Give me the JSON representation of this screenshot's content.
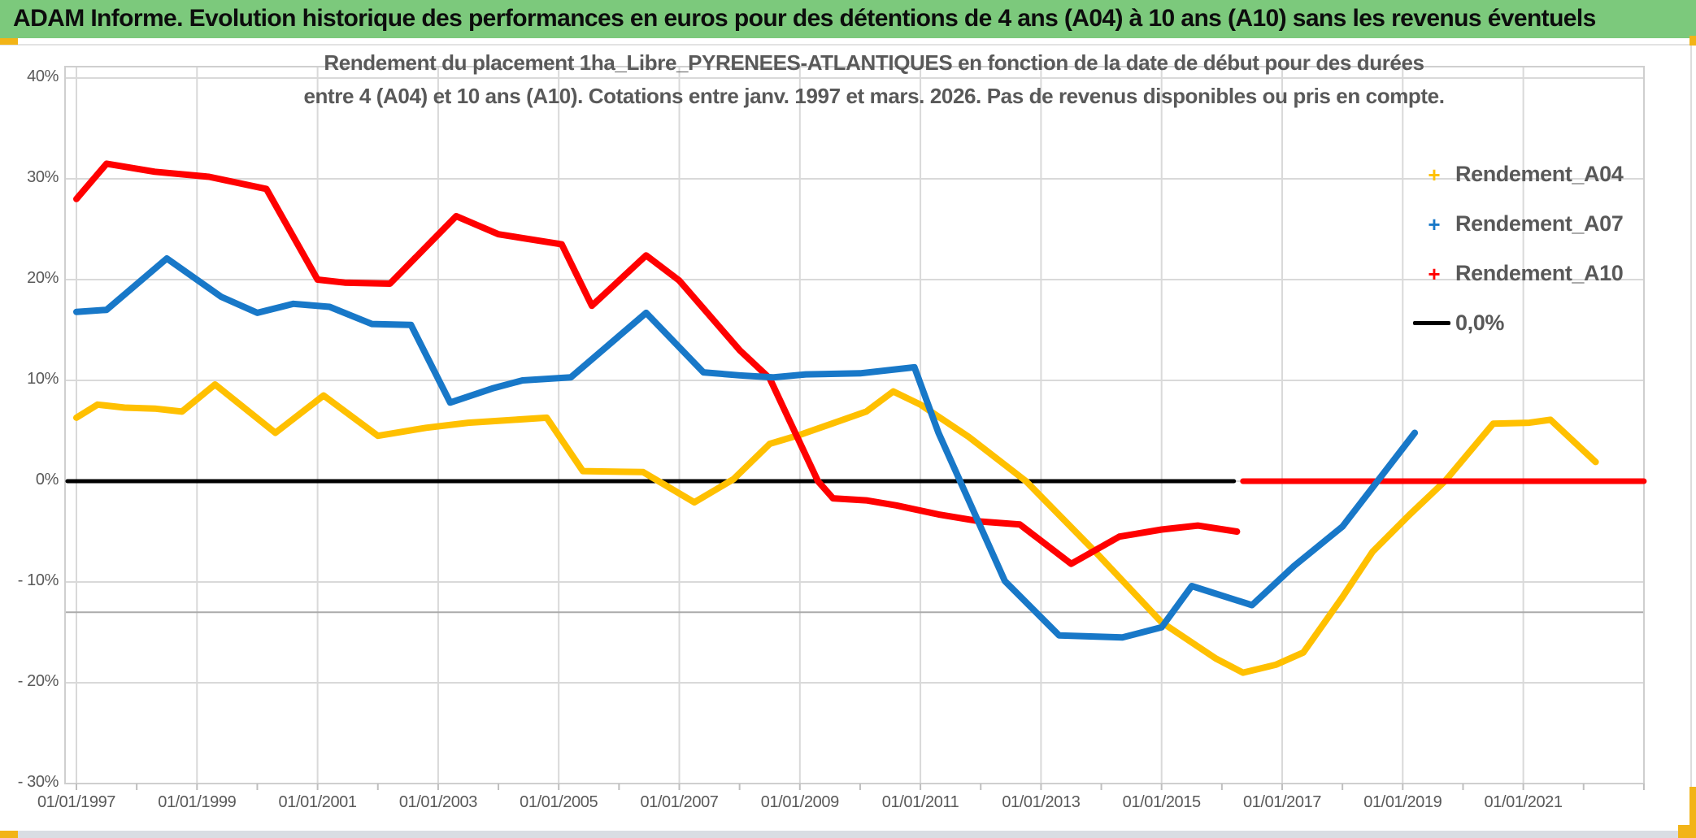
{
  "header": {
    "title": "ADAM Informe. Evolution historique des performances en euros pour des détentions de 4 ans (A04) à 10 ans (A10) sans les revenus éventuels",
    "bg_color": "#7CC97C",
    "accent_color": "#F2B417"
  },
  "chart_data": {
    "type": "line",
    "title_line1": "Rendement du placement 1ha_Libre_PYRENEES-ATLANTIQUES en fonction de la date de début pour des durées",
    "title_line2": "entre 4 (A04) et 10 ans (A10). Cotations entre janv. 1997 et mars. 2026. Pas de revenus disponibles ou pris en compte.",
    "x_axis": {
      "min_year": 1997,
      "max_year": 2023,
      "gridline_step_years": 2,
      "minor_tick_step_years": 1,
      "tick_labels": [
        {
          "year": 1997,
          "label": "01/01/1997"
        },
        {
          "year": 1999,
          "label": "01/01/1999"
        },
        {
          "year": 2001,
          "label": "01/01/2001"
        },
        {
          "year": 2003,
          "label": "01/01/2003"
        },
        {
          "year": 2005,
          "label": "01/01/2005"
        },
        {
          "year": 2007,
          "label": "01/01/2007"
        },
        {
          "year": 2009,
          "label": "01/01/2009"
        },
        {
          "year": 2011,
          "label": "01/01/2011"
        },
        {
          "year": 2013,
          "label": "01/01/2013"
        },
        {
          "year": 2015,
          "label": "01/01/2015"
        },
        {
          "year": 2017,
          "label": "01/01/2017"
        },
        {
          "year": 2019,
          "label": "01/01/2019"
        },
        {
          "year": 2021,
          "label": "01/01/2021"
        }
      ]
    },
    "y_axis": {
      "min": -30,
      "max": 40,
      "unit": "%",
      "ticks": [
        {
          "value": 40,
          "label": "40%"
        },
        {
          "value": 30,
          "label": "30%"
        },
        {
          "value": 20,
          "label": "20%"
        },
        {
          "value": 10,
          "label": "10%"
        },
        {
          "value": 0,
          "label": "0%"
        },
        {
          "value": -10,
          "label": "- 10%"
        },
        {
          "value": -20,
          "label": "- 20%"
        },
        {
          "value": -30,
          "label": "- 30%"
        }
      ]
    },
    "divider_line_value": -13,
    "grid_color": "#D9D9D9",
    "divider_line_color": "#ABABAB",
    "legend": [
      {
        "label": "Rendement_A04",
        "color": "#FFC000",
        "marker": "plus"
      },
      {
        "label": "Rendement_A07",
        "color": "#1878C8",
        "marker": "plus"
      },
      {
        "label": "Rendement_A10",
        "color": "#FF0000",
        "marker": "plus"
      },
      {
        "label": "0,0%",
        "color": "#000000",
        "marker": "line"
      }
    ],
    "series": [
      {
        "name": "zero_reference",
        "color": "#000000",
        "width": 5,
        "points": [
          [
            1996.85,
            0.0
          ],
          [
            2016.2,
            0.0
          ]
        ]
      },
      {
        "name": "Rendement_A04",
        "color": "#FFC000",
        "width": 8,
        "points": [
          [
            1997.0,
            6.3
          ],
          [
            1997.35,
            7.6
          ],
          [
            1997.8,
            7.3
          ],
          [
            1998.3,
            7.2
          ],
          [
            1998.75,
            6.9
          ],
          [
            1999.3,
            9.6
          ],
          [
            2000.3,
            4.8
          ],
          [
            2001.1,
            8.5
          ],
          [
            2002.0,
            4.5
          ],
          [
            2002.8,
            5.3
          ],
          [
            2003.5,
            5.8
          ],
          [
            2004.8,
            6.3
          ],
          [
            2005.4,
            1.0
          ],
          [
            2006.4,
            0.9
          ],
          [
            2007.25,
            -2.1
          ],
          [
            2007.9,
            0.2
          ],
          [
            2008.5,
            3.7
          ],
          [
            2009.0,
            4.6
          ],
          [
            2010.1,
            6.9
          ],
          [
            2010.55,
            8.9
          ],
          [
            2011.0,
            7.6
          ],
          [
            2011.8,
            4.4
          ],
          [
            2012.75,
            0.0
          ],
          [
            2013.9,
            -7.0
          ],
          [
            2015.0,
            -14.0
          ],
          [
            2015.9,
            -17.6
          ],
          [
            2016.35,
            -19.0
          ],
          [
            2016.9,
            -18.2
          ],
          [
            2017.35,
            -17.0
          ],
          [
            2018.0,
            -11.5
          ],
          [
            2018.5,
            -7.0
          ],
          [
            2019.1,
            -3.4
          ],
          [
            2019.7,
            0.0
          ],
          [
            2020.5,
            5.7
          ],
          [
            2021.1,
            5.8
          ],
          [
            2021.45,
            6.1
          ],
          [
            2022.2,
            1.9
          ]
        ]
      },
      {
        "name": "Rendement_A04_zero_tail",
        "color": "#FFC000",
        "width": 6,
        "points": [
          [
            2022.35,
            0.0
          ],
          [
            2023.0,
            0.0
          ]
        ]
      },
      {
        "name": "Rendement_A10",
        "color": "#FF0000",
        "width": 8,
        "points": [
          [
            1997.0,
            28.0
          ],
          [
            1997.5,
            31.5
          ],
          [
            1998.3,
            30.7
          ],
          [
            1999.2,
            30.2
          ],
          [
            2000.15,
            29.0
          ],
          [
            2001.0,
            20.0
          ],
          [
            2001.45,
            19.7
          ],
          [
            2002.2,
            19.6
          ],
          [
            2003.3,
            26.3
          ],
          [
            2004.0,
            24.5
          ],
          [
            2005.05,
            23.5
          ],
          [
            2005.55,
            17.4
          ],
          [
            2006.45,
            22.4
          ],
          [
            2007.0,
            19.9
          ],
          [
            2008.0,
            13.0
          ],
          [
            2008.5,
            10.2
          ],
          [
            2009.3,
            0.0
          ],
          [
            2009.55,
            -1.7
          ],
          [
            2010.1,
            -1.9
          ],
          [
            2010.6,
            -2.4
          ],
          [
            2011.3,
            -3.3
          ],
          [
            2012.0,
            -4.0
          ],
          [
            2012.65,
            -4.3
          ],
          [
            2013.5,
            -8.2
          ],
          [
            2014.3,
            -5.5
          ],
          [
            2015.0,
            -4.8
          ],
          [
            2015.6,
            -4.4
          ],
          [
            2016.25,
            -5.0
          ]
        ]
      },
      {
        "name": "Rendement_A10_zero_tail",
        "color": "#FF0000",
        "width": 7,
        "points": [
          [
            2016.35,
            0.0
          ],
          [
            2023.0,
            0.0
          ]
        ]
      },
      {
        "name": "Rendement_A07",
        "color": "#1878C8",
        "width": 8,
        "points": [
          [
            1997.0,
            16.8
          ],
          [
            1997.5,
            17.0
          ],
          [
            1998.5,
            22.1
          ],
          [
            1999.4,
            18.3
          ],
          [
            2000.0,
            16.7
          ],
          [
            2000.6,
            17.6
          ],
          [
            2001.2,
            17.3
          ],
          [
            2001.9,
            15.6
          ],
          [
            2002.55,
            15.5
          ],
          [
            2003.2,
            7.8
          ],
          [
            2003.9,
            9.2
          ],
          [
            2004.4,
            10.0
          ],
          [
            2005.2,
            10.3
          ],
          [
            2006.45,
            16.7
          ],
          [
            2007.4,
            10.8
          ],
          [
            2008.0,
            10.5
          ],
          [
            2008.55,
            10.3
          ],
          [
            2009.1,
            10.6
          ],
          [
            2010.0,
            10.7
          ],
          [
            2010.9,
            11.3
          ],
          [
            2011.3,
            4.8
          ],
          [
            2012.4,
            -9.9
          ],
          [
            2013.3,
            -15.3
          ],
          [
            2014.35,
            -15.5
          ],
          [
            2015.0,
            -14.5
          ],
          [
            2015.5,
            -10.4
          ],
          [
            2016.5,
            -12.3
          ],
          [
            2017.2,
            -8.4
          ],
          [
            2018.0,
            -4.5
          ],
          [
            2019.2,
            4.8
          ]
        ]
      }
    ]
  },
  "footer": {
    "strip_color": "#D9DDE3",
    "accent_color": "#F2B417"
  }
}
